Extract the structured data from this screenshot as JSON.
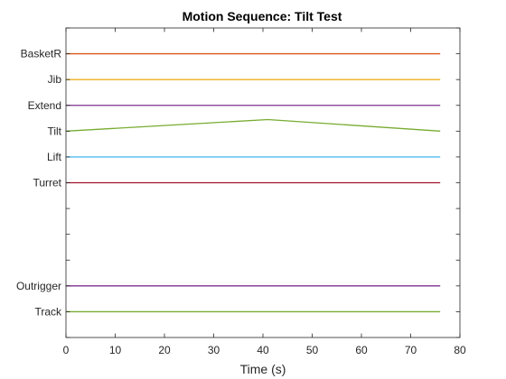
{
  "chart_data": {
    "type": "line",
    "title": "Motion Sequence: Tilt Test",
    "xlabel": "Time (s)",
    "ylabel": "",
    "xlim": [
      0,
      80
    ],
    "xticks": [
      0,
      10,
      20,
      30,
      40,
      50,
      60,
      70,
      80
    ],
    "ylim": [
      0,
      12
    ],
    "yticks": [
      0,
      1,
      2,
      3,
      4,
      5,
      6,
      7,
      8,
      9,
      10,
      11,
      12
    ],
    "ytick_labels": [
      "",
      "Track",
      "Outrigger",
      "",
      "",
      "",
      "Turret",
      "Lift",
      "Tilt",
      "Extend",
      "Jib",
      "BasketR",
      ""
    ],
    "grid": false,
    "series": [
      {
        "name": "Track",
        "color": "#77AC30",
        "x": [
          0,
          76
        ],
        "y": [
          1,
          1
        ]
      },
      {
        "name": "Outrigger",
        "color": "#7E2F8E",
        "x": [
          0,
          76
        ],
        "y": [
          2,
          2
        ]
      },
      {
        "name": "Turret",
        "color": "#A2142F",
        "x": [
          0,
          76
        ],
        "y": [
          6,
          6
        ]
      },
      {
        "name": "Lift",
        "color": "#4DBEEE",
        "x": [
          0,
          76
        ],
        "y": [
          7,
          7
        ]
      },
      {
        "name": "Tilt",
        "color": "#77AC30",
        "x": [
          0,
          41,
          76
        ],
        "y": [
          8,
          8.45,
          8
        ]
      },
      {
        "name": "Extend",
        "color": "#7E2F8E",
        "x": [
          0,
          76
        ],
        "y": [
          9,
          9
        ]
      },
      {
        "name": "Jib",
        "color": "#EDB120",
        "x": [
          0,
          76
        ],
        "y": [
          10,
          10
        ]
      },
      {
        "name": "BasketR",
        "color": "#D95319",
        "x": [
          0,
          76
        ],
        "y": [
          11,
          11
        ]
      }
    ]
  }
}
